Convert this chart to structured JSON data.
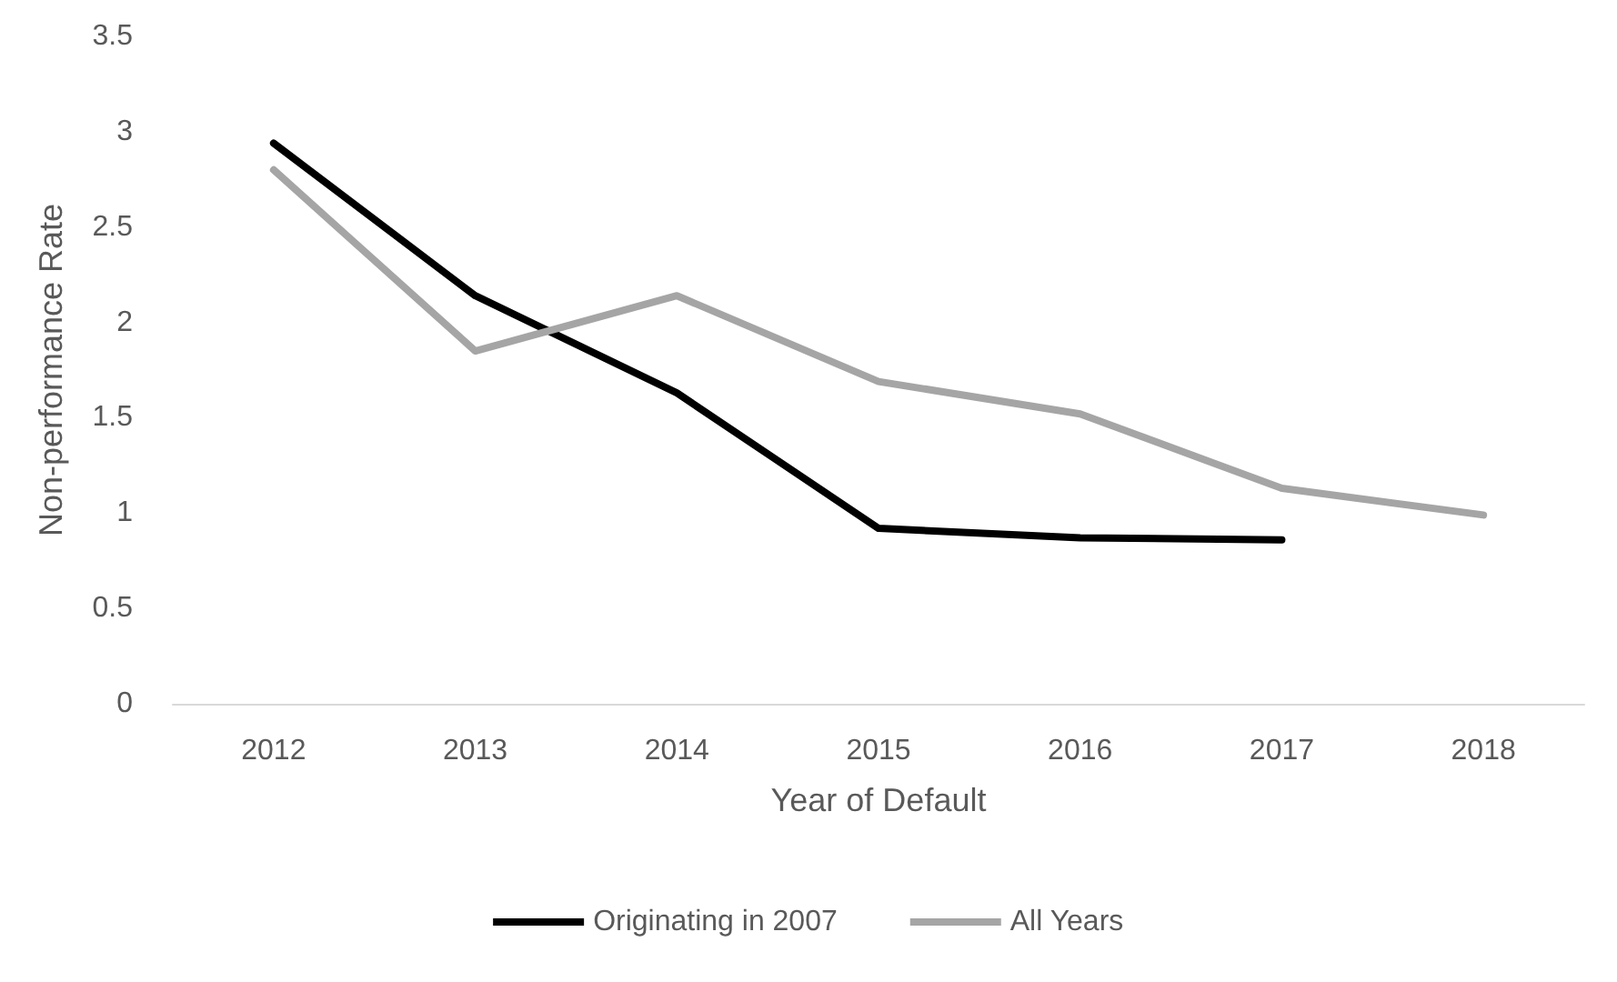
{
  "chart_data": {
    "type": "line",
    "xlabel": "Year of Default",
    "ylabel": "Non-performance Rate",
    "categories": [
      "2012",
      "2013",
      "2014",
      "2015",
      "2016",
      "2017",
      "2018"
    ],
    "series": [
      {
        "name": "Originating in 2007",
        "color": "#000000",
        "values": [
          2.94,
          2.14,
          1.63,
          0.92,
          0.87,
          0.86,
          null
        ]
      },
      {
        "name": "All Years",
        "color": "#a5a5a5",
        "values": [
          2.8,
          1.85,
          2.14,
          1.69,
          1.52,
          1.13,
          0.99
        ]
      }
    ],
    "ylim": [
      0,
      3.5
    ],
    "yticks": [
      0,
      0.5,
      1,
      1.5,
      2,
      2.5,
      3,
      3.5
    ],
    "grid": false,
    "legend": "bottom",
    "marker": "none",
    "line_style": "solid"
  }
}
